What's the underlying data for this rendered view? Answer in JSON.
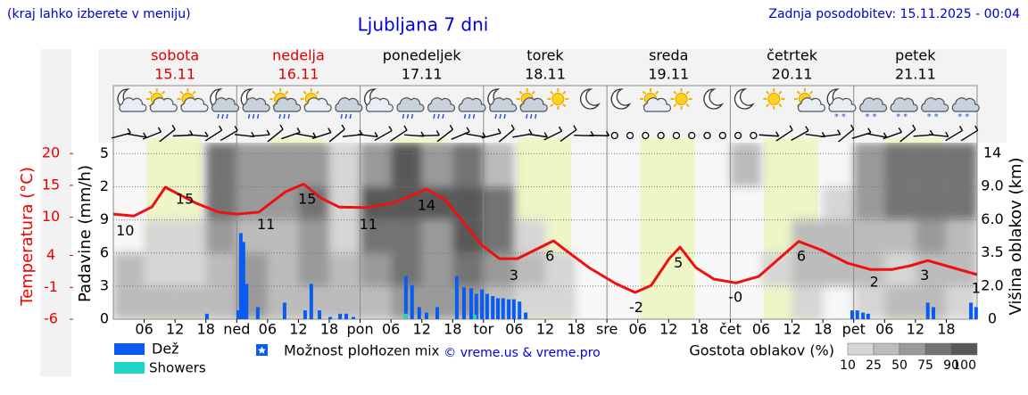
{
  "header": {
    "note": "(kraj lahko izberete v meniju)",
    "updated": "Zadnja posodobitev: 15.11.2025 - 00:04"
  },
  "chart_data": {
    "type": "line",
    "title": "Ljubljana 7 dni",
    "days": [
      {
        "name": "sobota",
        "date": "15.11",
        "weekend": true
      },
      {
        "name": "nedelja",
        "date": "16.11",
        "weekend": true
      },
      {
        "name": "ponedeljek",
        "date": "17.11",
        "weekend": false
      },
      {
        "name": "torek",
        "date": "18.11",
        "weekend": false
      },
      {
        "name": "sreda",
        "date": "19.11",
        "weekend": false
      },
      {
        "name": "četrtek",
        "date": "20.11",
        "weekend": false
      },
      {
        "name": "petek",
        "date": "21.11",
        "weekend": false
      }
    ],
    "y_label": "Temperatura (°C)",
    "y2_label": "Padavine (mm/h)",
    "y3_label": "Višina oblakov (km)",
    "xlim": [
      0,
      168
    ],
    "xticks": [
      {
        "value": 6,
        "label": "06"
      },
      12,
      18,
      {
        "value": 24,
        "label": "ned"
      },
      {
        "value": 30,
        "label": "06"
      },
      {
        "value": 36,
        "label": "12"
      },
      {
        "value": 42,
        "label": "18"
      },
      {
        "value": 48,
        "label": "pon"
      },
      {
        "value": 54,
        "label": "06"
      },
      {
        "value": 60,
        "label": "12"
      },
      {
        "value": 66,
        "label": "18"
      },
      {
        "value": 72,
        "label": "tor"
      },
      {
        "value": 78,
        "label": "06"
      },
      {
        "value": 84,
        "label": "12"
      },
      {
        "value": 90,
        "label": "18"
      },
      {
        "value": 96,
        "label": "sre"
      },
      {
        "value": 102,
        "label": "06"
      },
      {
        "value": 108,
        "label": "12"
      },
      {
        "value": 114,
        "label": "18"
      },
      {
        "value": 120,
        "label": "čet"
      },
      {
        "value": 126,
        "label": "06"
      },
      {
        "value": 132,
        "label": "12"
      },
      {
        "value": 138,
        "label": "18"
      },
      {
        "value": 144,
        "label": "pet"
      },
      {
        "value": 150,
        "label": "06"
      },
      {
        "value": 156,
        "label": "12"
      },
      {
        "value": 162,
        "label": "18"
      }
    ],
    "ylim": [
      -6,
      21.7
    ],
    "yticks": [
      -6,
      -1,
      4,
      10,
      15,
      20
    ],
    "y2lim": [
      0,
      16
    ],
    "y2ticks": [
      0,
      3,
      6,
      9,
      {
        "value": 12,
        "label": "2"
      },
      {
        "value": 15,
        "label": "5"
      }
    ],
    "y3ticks": [
      0,
      {
        "value": 2,
        "label": "2.0"
      },
      3.5,
      {
        "value": 6,
        "label": "6.0"
      },
      {
        "value": 9,
        "label": "9.0"
      },
      14
    ],
    "temperature": {
      "color": "#ee1111",
      "x": [
        0,
        4.0,
        7.5,
        10.1,
        16.1,
        20.5,
        24.0,
        28.3,
        33.5,
        37.0,
        40.4,
        43.9,
        49.1,
        54.3,
        60.9,
        64.7,
        68.2,
        71.7,
        75.1,
        78.6,
        82.1,
        85.6,
        89.0,
        92.5,
        97.7,
        101.5,
        104.6,
        108.1,
        110.2,
        113.3,
        116.8,
        121.1,
        125.5,
        128.9,
        133.3,
        137.6,
        142.8,
        147.2,
        151.5,
        155.0,
        158.4,
        161.9,
        168
      ],
      "values": [
        10.5,
        10.2,
        11.6,
        14.7,
        12.2,
        10.8,
        10.5,
        10.8,
        14.0,
        15.2,
        13.0,
        11.6,
        11.5,
        12.2,
        14.4,
        12.6,
        9.1,
        5.6,
        3.5,
        3.5,
        4.9,
        6.3,
        4.2,
        2.1,
        -0.4,
        -1.8,
        -0.7,
        3.5,
        5.3,
        2.1,
        0.3,
        -0.3,
        0.7,
        3.1,
        6.2,
        4.9,
        2.8,
        1.8,
        1.8,
        2.4,
        3.2,
        2.4,
        1.0
      ]
    },
    "temp_labels": [
      {
        "x": 2.3,
        "value": 10
      },
      {
        "x": 13.9,
        "value": 15
      },
      {
        "x": 29.7,
        "value": 11
      },
      {
        "x": 37.7,
        "value": 15
      },
      {
        "x": 49.6,
        "value": 11
      },
      {
        "x": 60.9,
        "value": 14
      },
      {
        "x": 77.9,
        "value": 3
      },
      {
        "x": 84.9,
        "value": 6
      },
      {
        "x": 101.7,
        "value": -2
      },
      {
        "x": 109.9,
        "value": 5
      },
      {
        "x": 121,
        "value": -0.4,
        "label": "-0"
      },
      {
        "x": 133.8,
        "value": 6
      },
      {
        "x": 148,
        "value": 2
      },
      {
        "x": 157.8,
        "value": 3
      },
      {
        "x": 167.8,
        "value": 1
      }
    ],
    "series": [
      {
        "name": "Dež",
        "color": "#0a5cf0",
        "x": [
          18.2,
          24.3,
          24.8,
          25.3,
          25.9,
          28.1,
          33.3,
          37.3,
          38.5,
          40.1,
          42.2,
          44.1,
          45.3,
          46.7,
          56.9,
          58.1,
          59.5,
          60.9,
          63.0,
          66.8,
          68.2,
          69.6,
          70.6,
          71.7,
          72.7,
          73.8,
          74.8,
          75.8,
          76.9,
          77.9,
          79.0,
          80.2,
          143.7,
          144.7,
          145.8,
          146.8,
          158.4,
          159.5,
          166.8,
          167.8
        ],
        "values": [
          0.5,
          0.8,
          7.8,
          7.0,
          3.2,
          1.1,
          1.5,
          0.8,
          3.2,
          0.8,
          0.2,
          0.5,
          0.5,
          0.2,
          3.9,
          3.1,
          1.1,
          0.6,
          1.1,
          3.9,
          2.9,
          2.8,
          2.3,
          2.7,
          2.3,
          2.1,
          1.9,
          1.9,
          1.8,
          1.8,
          1.6,
          0.6,
          0.8,
          0.8,
          0.6,
          0.5,
          1.5,
          1.1,
          1.5,
          1.1
        ]
      },
      {
        "name": "Showers",
        "color": "#1fd6c4",
        "x": [
          56.9,
          70.3
        ],
        "values": [
          0.5,
          0.4
        ]
      }
    ],
    "legend_extra": {
      "showers_chance": "Možnost ploh",
      "mix": "lozen mix",
      "credit": "© vreme.us & vreme.pro"
    },
    "cloud": {
      "title": "Gostota oblakov (%)",
      "x": [
        0,
        6,
        12,
        18,
        24,
        30,
        36,
        42,
        48,
        54,
        60,
        66,
        72,
        78,
        84,
        90,
        96,
        102,
        108,
        114,
        120,
        126,
        132,
        138,
        144,
        150,
        156,
        162
      ],
      "values": [
        [
          40,
          30,
          25,
          30,
          50,
          40,
          40,
          30,
          30,
          50,
          50,
          60,
          40,
          20,
          10,
          0,
          0,
          0,
          0,
          0,
          0,
          0,
          10,
          0,
          10,
          25,
          25,
          10
        ],
        [
          25,
          10,
          10,
          40,
          50,
          40,
          60,
          25,
          60,
          75,
          50,
          80,
          60,
          25,
          10,
          0,
          0,
          0,
          0,
          0,
          0,
          10,
          30,
          25,
          25,
          10,
          25,
          25
        ],
        [
          0,
          10,
          10,
          50,
          25,
          25,
          50,
          10,
          75,
          75,
          50,
          90,
          75,
          10,
          0,
          0,
          0,
          0,
          0,
          0,
          0,
          0,
          25,
          25,
          40,
          25,
          50,
          40
        ],
        [
          0,
          0,
          0,
          75,
          50,
          50,
          75,
          10,
          90,
          90,
          90,
          90,
          75,
          0,
          0,
          0,
          0,
          0,
          0,
          0,
          0,
          0,
          0,
          10,
          50,
          75,
          75,
          75
        ],
        [
          0,
          0,
          0,
          80,
          50,
          50,
          60,
          10,
          50,
          90,
          50,
          75,
          25,
          0,
          0,
          0,
          0,
          0,
          0,
          0,
          25,
          0,
          0,
          0,
          50,
          75,
          75,
          75
        ]
      ],
      "legend_ticks": [
        10,
        25,
        50,
        75,
        90,
        100
      ]
    }
  }
}
